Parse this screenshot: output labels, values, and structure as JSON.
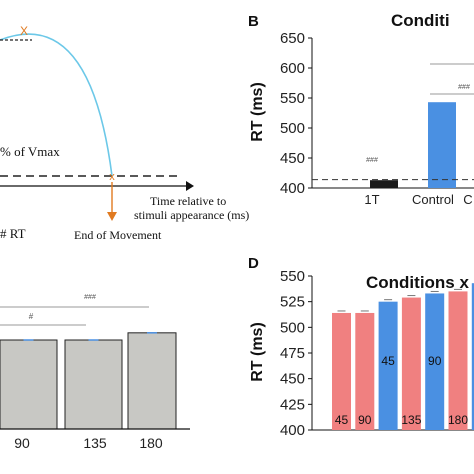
{
  "panels": {
    "a": {
      "vmax_label": "% of Vmax",
      "x_marker": "X",
      "end_marker": "x",
      "time_label_line1": "Time relative to",
      "time_label_line2": "stimuli appearance (ms)",
      "rt_label": "# RT",
      "end_label": "End of Movement"
    },
    "b": {
      "letter": "B",
      "title": "Conditi"
    },
    "c": {},
    "d": {
      "letter": "D",
      "title": "Conditions x"
    }
  },
  "chart_data": [
    {
      "panel": "B",
      "type": "bar",
      "title": "Conditi",
      "ylabel": "RT (ms)",
      "ylim": [
        400,
        650
      ],
      "yticks": [
        400,
        450,
        500,
        550,
        600,
        650
      ],
      "categories": [
        "1T",
        "Control",
        "C"
      ],
      "values": [
        413,
        543,
        null
      ],
      "bar_colors": [
        "#1a1a1a",
        "#4a90e2",
        "#4a90e2"
      ],
      "reference_line": 414,
      "annotations": [
        "###",
        "###"
      ]
    },
    {
      "panel": "C",
      "type": "bar",
      "categories": [
        "90",
        "135",
        "180"
      ],
      "values": [
        0.62,
        0.62,
        0.67
      ],
      "bar_color": "#c8c8c4",
      "annotations": [
        "#",
        "###"
      ]
    },
    {
      "panel": "D",
      "type": "bar",
      "title": "Conditions x",
      "ylabel": "RT (ms)",
      "ylim": [
        400,
        550
      ],
      "yticks": [
        400,
        425,
        450,
        475,
        500,
        525,
        550
      ],
      "bars": [
        {
          "label": "45",
          "value": 514,
          "color": "#f08080"
        },
        {
          "label": "90",
          "value": 514,
          "color": "#f08080"
        },
        {
          "label": "45",
          "value": 525,
          "color": "#4a90e2"
        },
        {
          "label": "135",
          "value": 529,
          "color": "#f08080"
        },
        {
          "label": "90",
          "value": 533,
          "color": "#4a90e2"
        },
        {
          "label": "180",
          "value": 535,
          "color": "#f08080"
        },
        {
          "label": "",
          "value": 543,
          "color": "#4a90e2"
        }
      ]
    }
  ]
}
